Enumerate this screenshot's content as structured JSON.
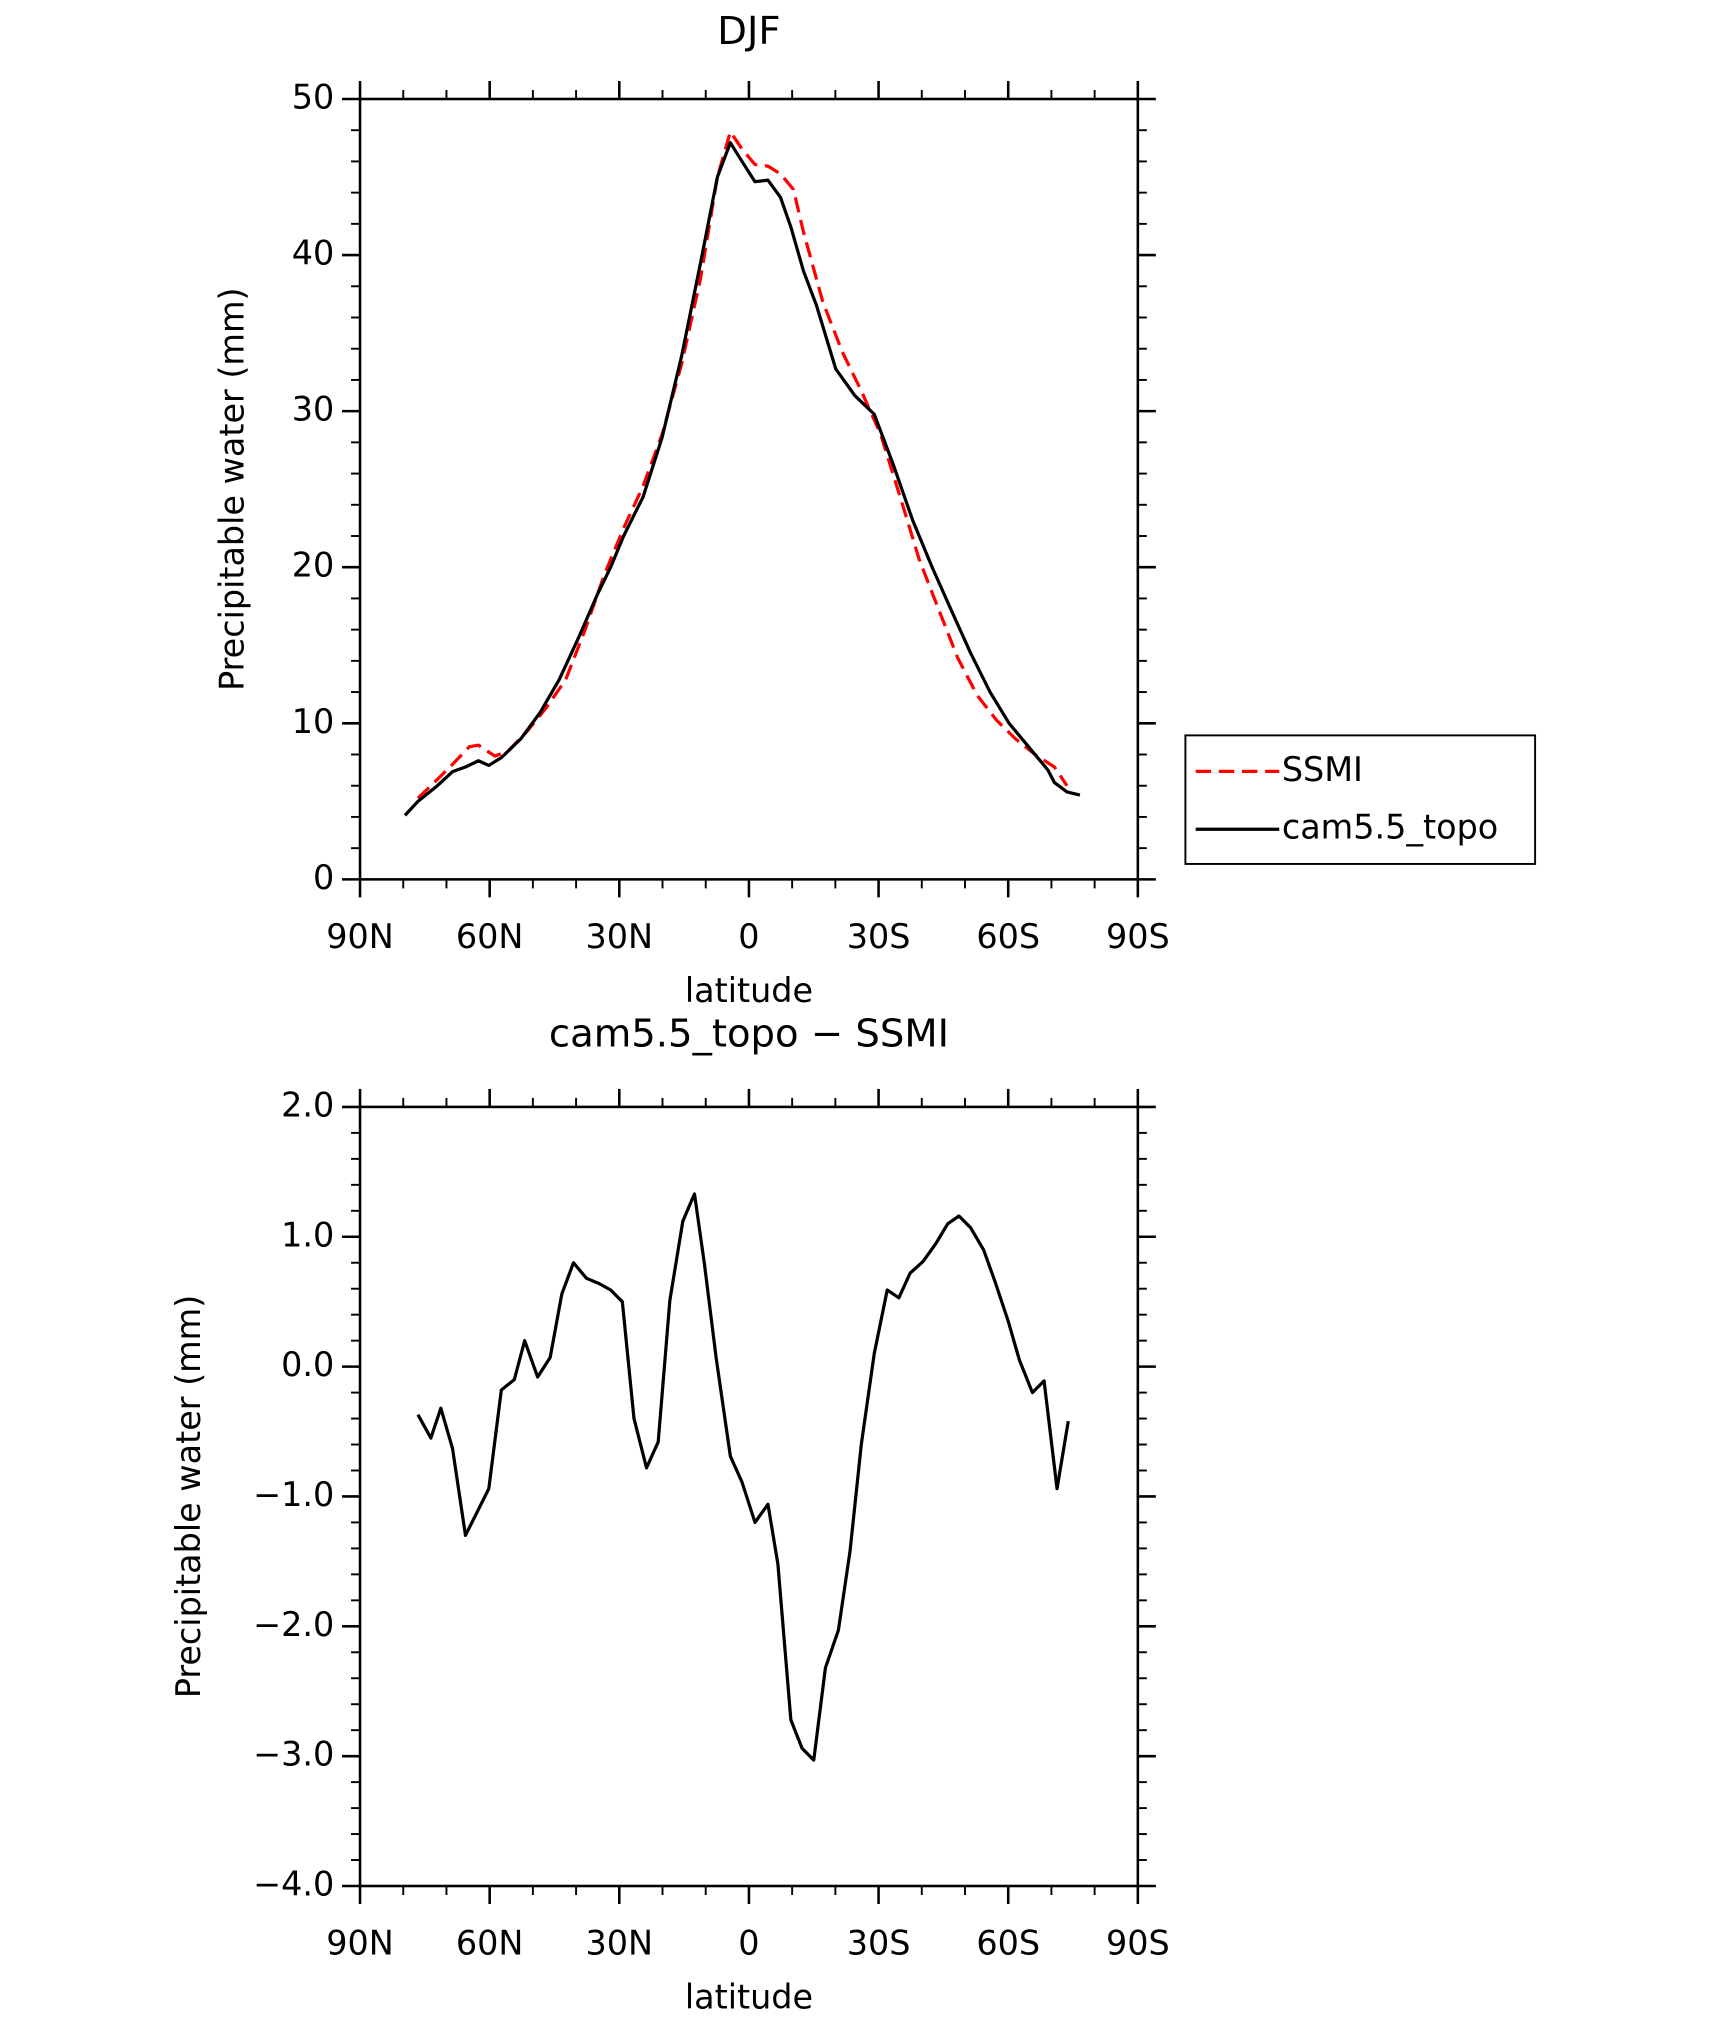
{
  "chart_data": [
    {
      "type": "line",
      "title": "DJF",
      "xlabel": "latitude",
      "ylabel": "Precipitable water (mm)",
      "xlim": [
        90,
        -90
      ],
      "xticks": [
        {
          "value": 90,
          "label": "90N"
        },
        {
          "value": 60,
          "label": "60N"
        },
        {
          "value": 30,
          "label": "30N"
        },
        0,
        {
          "value": -30,
          "label": "30S"
        },
        {
          "value": -60,
          "label": "60S"
        },
        {
          "value": -90,
          "label": "90S"
        }
      ],
      "ylim": [
        0,
        50
      ],
      "yticks": [
        0,
        10,
        20,
        30,
        40,
        50
      ],
      "legend": "right",
      "series": [
        {
          "name": "SSMI",
          "color": "#ff0000",
          "style": "dashed",
          "x": [
            76.6,
            73.6,
            69.2,
            64.7,
            62.6,
            58.8,
            55.8,
            51.3,
            46.9,
            42.4,
            37.9,
            33.5,
            29.0,
            24.5,
            20.1,
            15.6,
            11.2,
            7.3,
            4.3,
            1.6,
            -1.4,
            -4.4,
            -7.3,
            -10.3,
            -12.6,
            -17.1,
            -21.6,
            -26.0,
            -30.5,
            -35.0,
            -39.4,
            -43.9,
            -48.3,
            -52.8,
            -57.3,
            -61.7,
            -66.2,
            -70.7,
            -73.6
          ],
          "values": [
            5.2,
            6.0,
            7.2,
            8.5,
            8.6,
            7.9,
            8.2,
            9.5,
            11.0,
            12.8,
            16.0,
            19.5,
            22.5,
            25.2,
            28.5,
            33.0,
            38.5,
            45.0,
            47.9,
            46.8,
            45.8,
            45.7,
            45.2,
            44.2,
            41.5,
            37.0,
            33.8,
            31.3,
            28.5,
            24.5,
            20.5,
            17.3,
            14.2,
            11.8,
            10.2,
            9.0,
            8.0,
            7.2,
            6.0
          ]
        },
        {
          "name": "cam5.5_topo",
          "color": "#000000",
          "style": "solid",
          "x": [
            79.6,
            76.6,
            72.1,
            68.6,
            65.6,
            62.6,
            60.2,
            57.3,
            52.8,
            48.3,
            43.9,
            39.4,
            35.0,
            32.0,
            29.0,
            24.5,
            20.1,
            15.6,
            11.2,
            7.3,
            4.3,
            1.6,
            -1.4,
            -4.4,
            -7.3,
            -9.7,
            -12.6,
            -15.6,
            -20.1,
            -24.5,
            -29.0,
            -33.5,
            -37.9,
            -42.4,
            -46.9,
            -51.3,
            -55.8,
            -60.2,
            -64.7,
            -69.2,
            -70.7,
            -73.6,
            -76.6
          ],
          "values": [
            4.1,
            5.0,
            6.0,
            6.9,
            7.2,
            7.6,
            7.3,
            7.8,
            9.0,
            10.7,
            12.8,
            15.5,
            18.3,
            20.0,
            22.0,
            24.5,
            28.3,
            33.5,
            39.5,
            45.0,
            47.2,
            46.0,
            44.7,
            44.8,
            43.7,
            41.8,
            39.0,
            36.8,
            32.7,
            31.0,
            29.8,
            26.5,
            23.0,
            20.0,
            17.2,
            14.5,
            12.0,
            10.0,
            8.5,
            7.0,
            6.2,
            5.6,
            5.4
          ]
        }
      ]
    },
    {
      "type": "line",
      "title": "cam5.5_topo − SSMI",
      "xlabel": "latitude",
      "ylabel": "Precipitable water (mm)",
      "xlim": [
        90,
        -90
      ],
      "xticks": [
        {
          "value": 90,
          "label": "90N"
        },
        {
          "value": 60,
          "label": "60N"
        },
        {
          "value": 30,
          "label": "30N"
        },
        0,
        {
          "value": -30,
          "label": "30S"
        },
        {
          "value": -60,
          "label": "60S"
        },
        {
          "value": -90,
          "label": "90S"
        }
      ],
      "ylim": [
        -4,
        2
      ],
      "yticks": [
        {
          "value": -4,
          "label": "−4.0"
        },
        {
          "value": -3,
          "label": "−3.0"
        },
        {
          "value": -2,
          "label": "−2.0"
        },
        {
          "value": -1,
          "label": "−1.0"
        },
        {
          "value": 0,
          "label": "0.0"
        },
        {
          "value": 1,
          "label": "1.0"
        },
        {
          "value": 2,
          "label": "2.0"
        }
      ],
      "color": "#000000",
      "x": [
        76.6,
        73.6,
        71.3,
        68.6,
        65.6,
        60.2,
        57.3,
        54.3,
        51.9,
        48.9,
        46.0,
        43.3,
        40.6,
        37.6,
        34.7,
        32.0,
        29.3,
        26.6,
        23.7,
        21.0,
        18.3,
        15.3,
        12.6,
        10.3,
        7.6,
        4.3,
        1.6,
        -1.4,
        -4.4,
        -6.7,
        -9.7,
        -12.3,
        -15.0,
        -17.7,
        -20.7,
        -23.4,
        -26.0,
        -29.0,
        -32.0,
        -34.7,
        -37.3,
        -40.3,
        -43.3,
        -46.0,
        -48.6,
        -51.3,
        -54.3,
        -57.0,
        -60.0,
        -62.6,
        -65.6,
        -68.3,
        -71.3,
        -73.9
      ],
      "values": [
        -0.37,
        -0.55,
        -0.32,
        -0.63,
        -1.3,
        -0.94,
        -0.18,
        -0.1,
        0.2,
        -0.08,
        0.07,
        0.56,
        0.8,
        0.68,
        0.64,
        0.59,
        0.5,
        -0.4,
        -0.78,
        -0.58,
        0.51,
        1.12,
        1.33,
        0.79,
        0.07,
        -0.69,
        -0.89,
        -1.2,
        -1.06,
        -1.52,
        -2.72,
        -2.94,
        -3.03,
        -2.32,
        -2.03,
        -1.42,
        -0.6,
        0.1,
        0.59,
        0.53,
        0.72,
        0.81,
        0.95,
        1.1,
        1.16,
        1.07,
        0.9,
        0.65,
        0.35,
        0.05,
        -0.2,
        -0.11,
        -0.94,
        -0.42
      ]
    }
  ]
}
